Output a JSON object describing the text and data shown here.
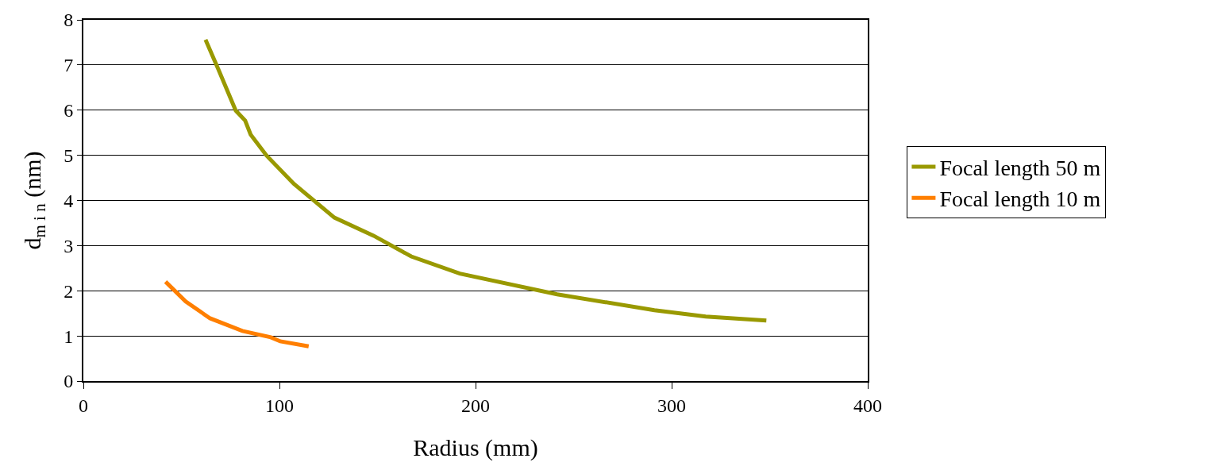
{
  "chart_data": {
    "type": "line",
    "xlabel": "Radius (mm)",
    "ylabel": "d$_{m i n}$ (nm)",
    "xlim": [
      0,
      400
    ],
    "xticks": [
      0,
      100,
      200,
      300,
      400
    ],
    "ylim": [
      0,
      8
    ],
    "yticks": [
      0,
      1,
      2,
      3,
      4,
      5,
      6,
      7,
      8
    ],
    "grid": "y",
    "legend": "right",
    "marker": "none",
    "line_style": "solid",
    "series": [
      {
        "name": "Focal length 50 m",
        "color": "#999900",
        "x": [
          62.3,
          68.7,
          77.7,
          82.5,
          85.3,
          93.5,
          107.3,
          128,
          148,
          167.2,
          192,
          241.6,
          291.2,
          317.4,
          348.3
        ],
        "values": [
          7.56,
          6.92,
          5.99,
          5.77,
          5.46,
          4.99,
          4.37,
          3.62,
          3.22,
          2.76,
          2.38,
          1.92,
          1.57,
          1.43,
          1.34
        ]
      },
      {
        "name": "Focal length 10 m",
        "color": "#ff7f00",
        "x": [
          41.9,
          52.2,
          64.6,
          81.1,
          95.6,
          100.4,
          114.9
        ],
        "values": [
          2.2,
          1.76,
          1.39,
          1.11,
          0.97,
          0.88,
          0.77
        ]
      }
    ]
  }
}
